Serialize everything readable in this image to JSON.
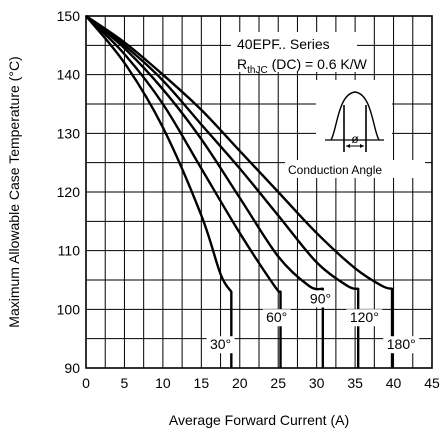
{
  "chart_data": {
    "type": "line",
    "title": "",
    "xlabel": "Average Forward Current (A)",
    "ylabel": "Maximum Allowable Case Temperature (°C)",
    "xlim": [
      0,
      45
    ],
    "ylim": [
      90,
      150
    ],
    "xticks": [
      0,
      5,
      10,
      15,
      20,
      25,
      30,
      35,
      40,
      45
    ],
    "yticks": [
      90,
      100,
      110,
      120,
      130,
      140,
      150
    ],
    "grid": true,
    "annotations": {
      "series_name": "40EPF.. Series",
      "rth_prefix": "R",
      "rth_sub": "thJC",
      "rth_suffix": " (DC) = 0.6 K/W",
      "inset_label": "Conduction Angle",
      "inset_symbol": "ø"
    },
    "series": [
      {
        "name": "30°",
        "points": [
          [
            0,
            150
          ],
          [
            5,
            142
          ],
          [
            10,
            131
          ],
          [
            15,
            116
          ],
          [
            17.5,
            106
          ],
          [
            18.9,
            103
          ]
        ],
        "drop_to": 90
      },
      {
        "name": "60°",
        "points": [
          [
            0,
            150
          ],
          [
            5,
            143.5
          ],
          [
            10,
            135
          ],
          [
            15,
            124
          ],
          [
            20,
            113
          ],
          [
            24.5,
            104
          ],
          [
            25.3,
            103
          ]
        ],
        "drop_to": 90
      },
      {
        "name": "90°",
        "points": [
          [
            0,
            150
          ],
          [
            5,
            144.5
          ],
          [
            10,
            137.5
          ],
          [
            15,
            129
          ],
          [
            20,
            119
          ],
          [
            25,
            109
          ],
          [
            29,
            104
          ],
          [
            30.8,
            103.5
          ]
        ],
        "drop_to": 90
      },
      {
        "name": "120°",
        "points": [
          [
            0,
            150
          ],
          [
            5,
            145
          ],
          [
            10,
            139
          ],
          [
            15,
            131.5
          ],
          [
            20,
            124
          ],
          [
            25,
            116
          ],
          [
            30,
            108
          ],
          [
            34,
            104
          ],
          [
            35.4,
            103.5
          ]
        ],
        "drop_to": 90
      },
      {
        "name": "180°",
        "points": [
          [
            0,
            150
          ],
          [
            5,
            145.5
          ],
          [
            10,
            140
          ],
          [
            15,
            134
          ],
          [
            20,
            127
          ],
          [
            25,
            120
          ],
          [
            30,
            113
          ],
          [
            35,
            107
          ],
          [
            38.5,
            104
          ],
          [
            39.8,
            103.5
          ]
        ],
        "drop_to": 90
      }
    ]
  }
}
